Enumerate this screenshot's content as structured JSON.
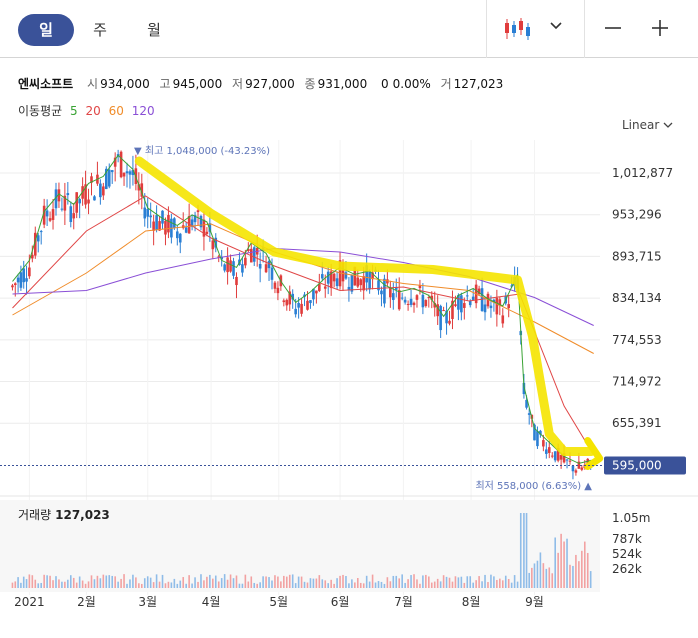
{
  "tabs": [
    "일",
    "주",
    "월"
  ],
  "active_tab": "일",
  "toolbar": {
    "chart_type_icon": "candlestick-icon",
    "dropdown_icon": "chevron-down-icon",
    "zoom_out_icon": "minus-icon",
    "zoom_in_icon": "plus-icon"
  },
  "stock": {
    "name": "엔씨소프트",
    "open_label": "시",
    "open": "934,000",
    "high_label": "고",
    "high": "945,000",
    "low_label": "저",
    "low": "927,000",
    "close_label": "종",
    "close": "931,000",
    "change": "0",
    "change_pct": "0.00%",
    "volume_label": "거",
    "volume": "127,023"
  },
  "moving_avg": {
    "label": "이동평균",
    "periods": [
      {
        "value": "5",
        "color": "#3aa335"
      },
      {
        "value": "20",
        "color": "#e04646"
      },
      {
        "value": "60",
        "color": "#f08c2a"
      },
      {
        "value": "120",
        "color": "#8a4fd6"
      }
    ]
  },
  "scale_label": "Linear",
  "colors": {
    "up": "#e03c3c",
    "down": "#2a7fd4",
    "current_badge": "#3a5299",
    "highlight": "#f5e400"
  },
  "chart_data": {
    "type": "candlestick",
    "y_ticks": [
      "1,012,877",
      "953,296",
      "893,715",
      "834,134",
      "774,553",
      "714,972",
      "655,391"
    ],
    "ylim": [
      560000,
      1060000
    ],
    "x_ticks": [
      "2021",
      "2월",
      "3월",
      "4월",
      "5월",
      "6월",
      "7월",
      "8월",
      "9월"
    ],
    "current_price": "595,000",
    "annotations": {
      "high": "▼ 최고 1,048,000 (-43.23%)",
      "low": "최저 558,000 (6.63%) ▲"
    },
    "price_series": {
      "name": "close",
      "points": [
        [
          "2020-12-28",
          850000
        ],
        [
          "2021-01-05",
          880000
        ],
        [
          "2021-01-12",
          950000
        ],
        [
          "2021-01-19",
          975000
        ],
        [
          "2021-01-26",
          960000
        ],
        [
          "2021-02-02",
          990000
        ],
        [
          "2021-02-09",
          1000000
        ],
        [
          "2021-02-16",
          1030000
        ],
        [
          "2021-02-23",
          1010000
        ],
        [
          "2021-03-02",
          955000
        ],
        [
          "2021-03-09",
          940000
        ],
        [
          "2021-03-16",
          930000
        ],
        [
          "2021-03-23",
          945000
        ],
        [
          "2021-03-30",
          935000
        ],
        [
          "2021-04-06",
          880000
        ],
        [
          "2021-04-13",
          870000
        ],
        [
          "2021-04-20",
          905000
        ],
        [
          "2021-04-27",
          890000
        ],
        [
          "2021-05-04",
          850000
        ],
        [
          "2021-05-11",
          820000
        ],
        [
          "2021-05-18",
          835000
        ],
        [
          "2021-05-25",
          855000
        ],
        [
          "2021-06-01",
          870000
        ],
        [
          "2021-06-08",
          860000
        ],
        [
          "2021-06-15",
          865000
        ],
        [
          "2021-06-22",
          845000
        ],
        [
          "2021-06-29",
          835000
        ],
        [
          "2021-07-06",
          840000
        ],
        [
          "2021-07-13",
          830000
        ],
        [
          "2021-07-20",
          800000
        ],
        [
          "2021-07-27",
          830000
        ],
        [
          "2021-08-03",
          840000
        ],
        [
          "2021-08-10",
          825000
        ],
        [
          "2021-08-17",
          815000
        ],
        [
          "2021-08-24",
          860000
        ],
        [
          "2021-08-27",
          700000
        ],
        [
          "2021-09-01",
          640000
        ],
        [
          "2021-09-08",
          620000
        ],
        [
          "2021-09-15",
          600000
        ],
        [
          "2021-09-22",
          590000
        ],
        [
          "2021-09-29",
          595000
        ]
      ]
    },
    "moving_averages": [
      {
        "period": "20",
        "color": "#e04646",
        "points": [
          [
            "2020-12-28",
            820000
          ],
          [
            "2021-02-01",
            930000
          ],
          [
            "2021-03-01",
            980000
          ],
          [
            "2021-04-01",
            920000
          ],
          [
            "2021-05-01",
            880000
          ],
          [
            "2021-06-01",
            845000
          ],
          [
            "2021-07-01",
            850000
          ],
          [
            "2021-08-01",
            830000
          ],
          [
            "2021-08-25",
            840000
          ],
          [
            "2021-09-15",
            680000
          ],
          [
            "2021-09-29",
            610000
          ]
        ]
      },
      {
        "period": "60",
        "color": "#f08c2a",
        "points": [
          [
            "2020-12-28",
            810000
          ],
          [
            "2021-02-01",
            870000
          ],
          [
            "2021-03-01",
            930000
          ],
          [
            "2021-04-01",
            940000
          ],
          [
            "2021-05-01",
            900000
          ],
          [
            "2021-06-01",
            870000
          ],
          [
            "2021-07-01",
            855000
          ],
          [
            "2021-08-01",
            845000
          ],
          [
            "2021-09-01",
            800000
          ],
          [
            "2021-09-29",
            755000
          ]
        ]
      },
      {
        "period": "120",
        "color": "#8a4fd6",
        "points": [
          [
            "2020-12-28",
            840000
          ],
          [
            "2021-02-01",
            845000
          ],
          [
            "2021-03-01",
            870000
          ],
          [
            "2021-04-01",
            890000
          ],
          [
            "2021-05-01",
            905000
          ],
          [
            "2021-06-01",
            900000
          ],
          [
            "2021-07-01",
            885000
          ],
          [
            "2021-08-01",
            865000
          ],
          [
            "2021-09-01",
            835000
          ],
          [
            "2021-09-29",
            795000
          ]
        ]
      }
    ],
    "volume": {
      "label": "거래량",
      "value": "127,023",
      "y_ticks": [
        "1.05m",
        "787k",
        "524k",
        "262k"
      ]
    }
  }
}
